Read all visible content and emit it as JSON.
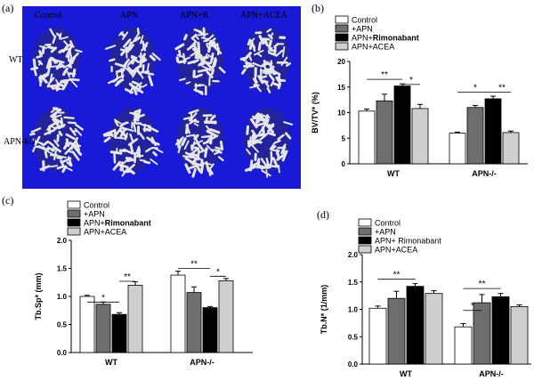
{
  "panels": {
    "a": {
      "label": "(a)",
      "columns": [
        "Control",
        "APN",
        "APN+R",
        "APN+ACEA"
      ],
      "rows": [
        "WT",
        "APN-kO"
      ]
    },
    "b": {
      "label": "(b)"
    },
    "c": {
      "label": "(c)"
    },
    "d": {
      "label": "(d)"
    }
  },
  "colors": {
    "Control": "#ffffff",
    "+APN": "#6e6e6e",
    "APN+Rimonabant": "#000000",
    "APN+ACEA": "#cfcfcf",
    "mct_background": "#1919d8",
    "bone": "#e6e6e6"
  },
  "chart_data": [
    {
      "panel": "b",
      "type": "bar",
      "ylabel": "BV/TV* (%)",
      "ylim": [
        0,
        20
      ],
      "yticks": [
        "0",
        "5",
        "10",
        "15",
        "20"
      ],
      "categories": [
        "WT",
        "APN-/-"
      ],
      "legend": [
        "Control",
        "+APN",
        "APN+Rimonabant",
        "APN+ACEA"
      ],
      "series": [
        {
          "name": "Control",
          "values": [
            10.3,
            6.0
          ],
          "errors": [
            0.4,
            0.2
          ]
        },
        {
          "name": "+APN",
          "values": [
            12.3,
            11.0
          ],
          "errors": [
            1.3,
            0.4
          ]
        },
        {
          "name": "APN+Rimonabant",
          "values": [
            15.2,
            12.7
          ],
          "errors": [
            0.4,
            0.5
          ]
        },
        {
          "name": "APN+ACEA",
          "values": [
            10.8,
            6.1
          ],
          "errors": [
            0.8,
            0.3
          ]
        }
      ],
      "significance": [
        {
          "group": 0,
          "from": 0,
          "to": 2,
          "level": 16.5,
          "label": "**"
        },
        {
          "group": 0,
          "from": 2,
          "to": 3,
          "level": 15.5,
          "label": "*"
        },
        {
          "group": 1,
          "from": 0,
          "to": 2,
          "level": 14.0,
          "label": "*"
        },
        {
          "group": 1,
          "from": 2,
          "to": 3,
          "level": 14.0,
          "label": "**"
        }
      ]
    },
    {
      "panel": "c",
      "type": "bar",
      "ylabel": "Tb.Sp* (mm)",
      "ylim": [
        0,
        2.0
      ],
      "yticks": [
        "0.0",
        "0.5",
        "1.0",
        "1.5",
        "2.0"
      ],
      "categories": [
        "WT",
        "APN-/-"
      ],
      "legend": [
        "Control",
        "+APN",
        "APN+Rimonabant",
        "APN+ACEA"
      ],
      "series": [
        {
          "name": "Control",
          "values": [
            1.0,
            1.38
          ],
          "errors": [
            0.02,
            0.07
          ]
        },
        {
          "name": "+APN",
          "values": [
            0.86,
            1.07
          ],
          "errors": [
            0.04,
            0.1
          ]
        },
        {
          "name": "APN+Rimonabant",
          "values": [
            0.68,
            0.8
          ],
          "errors": [
            0.03,
            0.02
          ]
        },
        {
          "name": "APN+ACEA",
          "values": [
            1.2,
            1.28
          ],
          "errors": [
            0.06,
            0.04
          ]
        }
      ],
      "significance": [
        {
          "group": 0,
          "from": 0,
          "to": 2,
          "level": 0.9,
          "label": "*"
        },
        {
          "group": 0,
          "from": 2,
          "to": 3,
          "level": 1.27,
          "label": "**"
        },
        {
          "group": 1,
          "from": 0,
          "to": 2,
          "level": 1.5,
          "label": "**"
        },
        {
          "group": 1,
          "from": 2,
          "to": 3,
          "level": 1.36,
          "label": "*"
        }
      ]
    },
    {
      "panel": "d",
      "type": "bar",
      "ylabel": "Tb.N* (1/mm)",
      "ylim": [
        0,
        2.0
      ],
      "yticks": [
        "0.0",
        "0.5",
        "1.0",
        "1.5",
        "2.0"
      ],
      "categories": [
        "WT",
        "APN-/-"
      ],
      "legend": [
        "Control",
        "+APN",
        "APN+ Rimonabant",
        "APN+ACEA"
      ],
      "series": [
        {
          "name": "Control",
          "values": [
            1.02,
            0.68
          ],
          "errors": [
            0.04,
            0.06
          ]
        },
        {
          "name": "+APN",
          "values": [
            1.2,
            1.12
          ],
          "errors": [
            0.13,
            0.15
          ]
        },
        {
          "name": "APN+Rimonabant",
          "values": [
            1.42,
            1.23
          ],
          "errors": [
            0.05,
            0.06
          ]
        },
        {
          "name": "APN+ACEA",
          "values": [
            1.29,
            1.05
          ],
          "errors": [
            0.05,
            0.03
          ]
        }
      ],
      "significance": [
        {
          "group": 0,
          "from": 0,
          "to": 2,
          "level": 1.55,
          "label": "**"
        },
        {
          "group": 1,
          "from": 0,
          "to": 1,
          "level": 0.98,
          "label": "*"
        },
        {
          "group": 1,
          "from": 0,
          "to": 2,
          "level": 1.38,
          "label": "**"
        }
      ]
    }
  ]
}
